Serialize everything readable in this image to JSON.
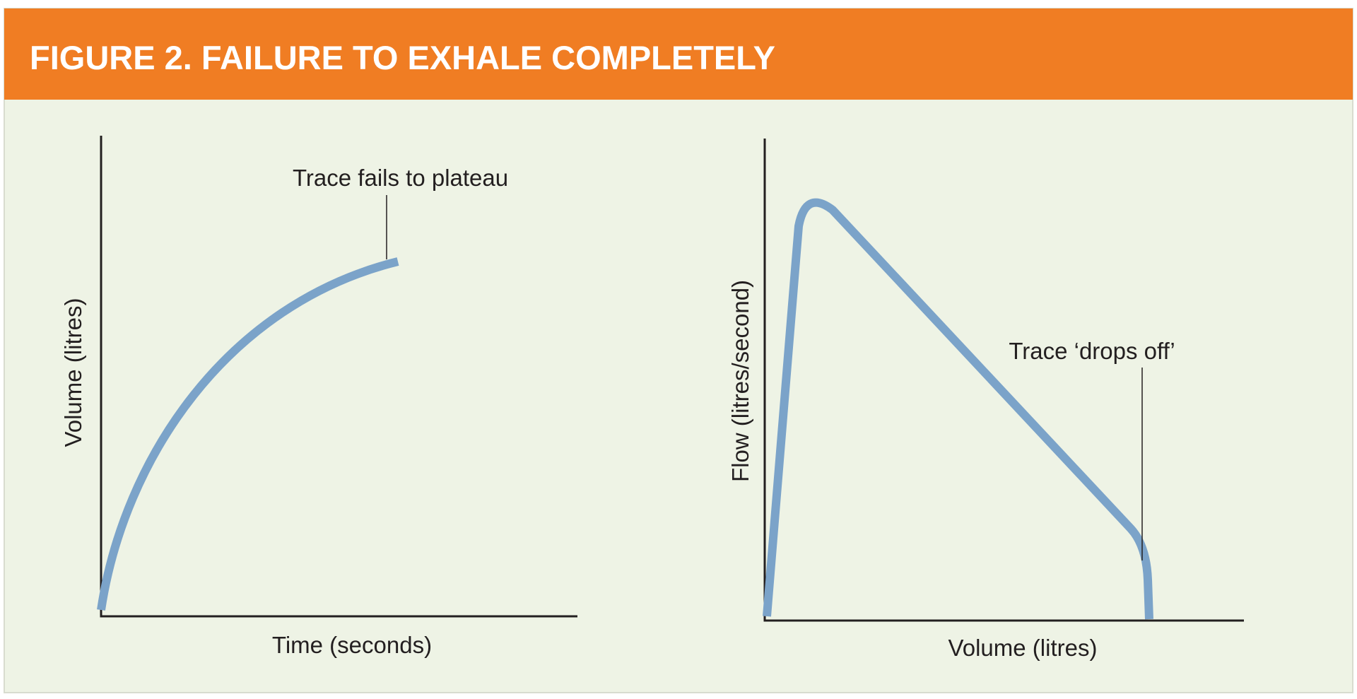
{
  "title": "FIGURE 2. FAILURE TO EXHALE COMPLETELY",
  "panels": [
    {
      "y_label": "Volume (litres)",
      "x_label": "Time (seconds)",
      "annotation": "Trace fails to plateau"
    },
    {
      "y_label": "Flow (litres/second)",
      "x_label": "Volume (litres)",
      "annotation": "Trace ‘drops off’"
    }
  ]
}
